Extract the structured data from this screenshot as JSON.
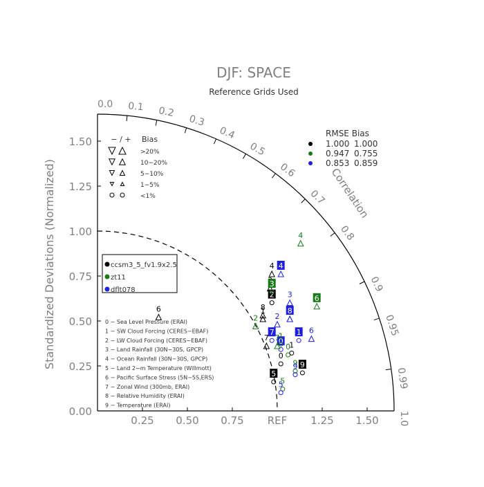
{
  "chart_data": {
    "type": "scatter",
    "diagram": "taylor",
    "title": "DJF: SPACE",
    "subtitle": "Reference Grids Used",
    "ylabel": "Standardized Deviations (Normalized)",
    "ref_label": "REF",
    "correlation_label": "Correlation",
    "sd_range": [
      0,
      1.65
    ],
    "sd_ticks": [
      "0.00",
      "0.25",
      "0.50",
      "0.75",
      "1.00",
      "1.25",
      "1.50"
    ],
    "x_ticks": [
      "0.25",
      "0.50",
      "0.75",
      "1.25",
      "1.50"
    ],
    "corr_ticks": [
      "0.0",
      "0.1",
      "0.2",
      "0.3",
      "0.4",
      "0.5",
      "0.6",
      "0.7",
      "0.8",
      "0.9",
      "0.95",
      "0.99",
      "1.0"
    ],
    "bias_legend": {
      "header": "− / +",
      "header_right": "Bias",
      "rows": [
        ">20%",
        "10−20%",
        "5−10%",
        "1−5%",
        "<1%"
      ]
    },
    "rmse_table": {
      "header": "RMSE Bias",
      "rows": [
        {
          "color": "#000000",
          "rmse": "1.000",
          "bias": "1.000"
        },
        {
          "color": "#1a7a1a",
          "rmse": "0.947",
          "bias": "0.755"
        },
        {
          "color": "#1f1fe0",
          "rmse": "0.853",
          "bias": "0.859"
        }
      ]
    },
    "series": [
      {
        "name": "ccsm3_5_fv1.9x2.5",
        "color": "#000000"
      },
      {
        "name": "zt11",
        "color": "#1a7a1a"
      },
      {
        "name": "dflt078",
        "color": "#1f1fe0"
      }
    ],
    "variables": [
      "0 − Sea Level Pressure (ERAI)",
      "1 − SW Cloud Forcing (CERES−EBAF)",
      "2 − LW Cloud Forcing (CERES−EBAF)",
      "3 − Land Rainfall (30N−30S, GPCP)",
      "4 − Ocean Rainfall (30N−30S, GPCP)",
      "5 − Land 2−m Temperature (Willmott)",
      "6 − Pacific Surface Stress (5N−5S,ERS)",
      "7 − Zonal Wind (300mb, ERAI)",
      "8 − Relative Humidity (ERAI)",
      "9 − Temperature (ERAI)"
    ],
    "points": [
      {
        "s": 0,
        "label": "0",
        "boxed": false,
        "x": 1.02,
        "y": 0.3,
        "marker": "o"
      },
      {
        "s": 1,
        "label": "0",
        "boxed": false,
        "x": 1.06,
        "y": 0.35,
        "marker": "o"
      },
      {
        "s": 2,
        "label": "0",
        "boxed": true,
        "x": 1.02,
        "y": 0.38,
        "marker": "o"
      },
      {
        "s": 0,
        "label": "1",
        "boxed": false,
        "x": 1.08,
        "y": 0.36,
        "marker": "o"
      },
      {
        "s": 1,
        "label": "1",
        "boxed": false,
        "x": 1.02,
        "y": 0.41,
        "marker": "o"
      },
      {
        "s": 2,
        "label": "1",
        "boxed": true,
        "x": 1.12,
        "y": 0.43,
        "marker": "o"
      },
      {
        "s": 0,
        "label": "1",
        "boxed": false,
        "x": 0.92,
        "y": 0.55,
        "marker": "tri-up"
      },
      {
        "s": 1,
        "label": "2",
        "boxed": false,
        "x": 0.88,
        "y": 0.51,
        "marker": "tri-up"
      },
      {
        "s": 2,
        "label": "2",
        "boxed": false,
        "x": 1.0,
        "y": 0.52,
        "marker": "tri-up"
      },
      {
        "s": 0,
        "label": "2",
        "boxed": true,
        "x": 0.97,
        "y": 0.64,
        "marker": "o"
      },
      {
        "s": 0,
        "label": "3",
        "boxed": false,
        "x": 0.96,
        "y": 0.72,
        "marker": "tri-up"
      },
      {
        "s": 1,
        "label": "3",
        "boxed": true,
        "x": 0.97,
        "y": 0.7,
        "marker": "o"
      },
      {
        "s": 2,
        "label": "3",
        "boxed": false,
        "x": 1.07,
        "y": 0.64,
        "marker": "tri-up"
      },
      {
        "s": 0,
        "label": "4",
        "boxed": false,
        "x": 0.97,
        "y": 0.8,
        "marker": "tri-up"
      },
      {
        "s": 1,
        "label": "4",
        "boxed": false,
        "x": 1.13,
        "y": 0.97,
        "marker": "tri-up"
      },
      {
        "s": 2,
        "label": "4",
        "boxed": true,
        "x": 1.02,
        "y": 0.8,
        "marker": "tri-up"
      },
      {
        "s": 0,
        "label": "5",
        "boxed": true,
        "x": 0.98,
        "y": 0.2,
        "marker": "o"
      },
      {
        "s": 1,
        "label": "5",
        "boxed": false,
        "x": 1.03,
        "y": 0.16,
        "marker": "o"
      },
      {
        "s": 2,
        "label": "5",
        "boxed": false,
        "x": 1.02,
        "y": 0.14,
        "marker": "o"
      },
      {
        "s": 0,
        "label": "6",
        "boxed": false,
        "x": 0.34,
        "y": 0.56,
        "marker": "tri-up"
      },
      {
        "s": 1,
        "label": "6",
        "boxed": true,
        "x": 1.22,
        "y": 0.62,
        "marker": "tri-up"
      },
      {
        "s": 2,
        "label": "6",
        "boxed": false,
        "x": 1.19,
        "y": 0.44,
        "marker": "tri-up"
      },
      {
        "s": 0,
        "label": "7",
        "boxed": false,
        "x": 0.94,
        "y": 0.4,
        "marker": "tri-up"
      },
      {
        "s": 1,
        "label": "7",
        "boxed": false,
        "x": 1.0,
        "y": 0.4,
        "marker": "tri-up"
      },
      {
        "s": 2,
        "label": "7",
        "boxed": true,
        "x": 0.97,
        "y": 0.43,
        "marker": "o"
      },
      {
        "s": 0,
        "label": "8",
        "boxed": false,
        "x": 0.92,
        "y": 0.57,
        "marker": "tri-up"
      },
      {
        "s": 1,
        "label": "8",
        "boxed": false,
        "x": 1.07,
        "y": 0.55,
        "marker": "tri-up"
      },
      {
        "s": 2,
        "label": "8",
        "boxed": true,
        "x": 1.07,
        "y": 0.55,
        "marker": "tri-up"
      },
      {
        "s": 0,
        "label": "9",
        "boxed": true,
        "x": 1.14,
        "y": 0.25,
        "marker": "o"
      },
      {
        "s": 1,
        "label": "9",
        "boxed": false,
        "x": 1.1,
        "y": 0.26,
        "marker": "o"
      },
      {
        "s": 2,
        "label": "9",
        "boxed": false,
        "x": 1.1,
        "y": 0.24,
        "marker": "o"
      }
    ]
  }
}
